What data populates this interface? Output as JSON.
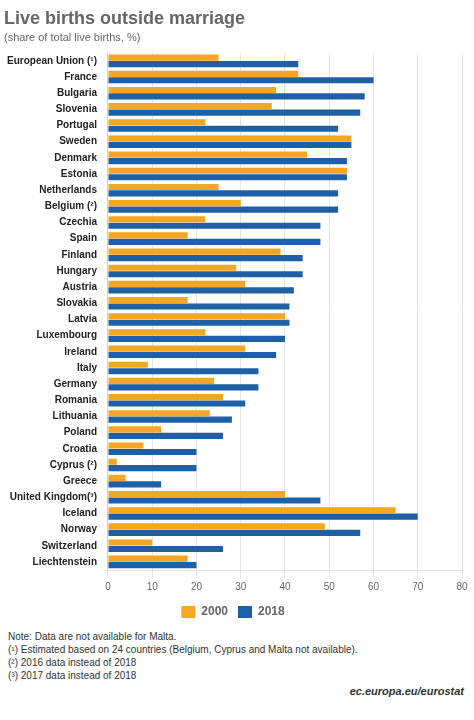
{
  "chart_data": {
    "type": "bar",
    "orientation": "horizontal",
    "title": "Live births outside marriage",
    "subtitle": "(share of total live births, %)",
    "categories": [
      "European Union (¹)",
      "France",
      "Bulgaria",
      "Slovenia",
      "Portugal",
      "Sweden",
      "Denmark",
      "Estonia",
      "Netherlands",
      "Belgium (²)",
      "Czechia",
      "Spain",
      "Finland",
      "Hungary",
      "Austria",
      "Slovakia",
      "Latvia",
      "Luxembourg",
      "Ireland",
      "Italy",
      "Germany",
      "Romania",
      "Lithuania",
      "Poland",
      "Croatia",
      "Cyprus (²)",
      "Greece",
      "United Kingdom(³)",
      "Iceland",
      "Norway",
      "Switzerland",
      "Liechtenstein"
    ],
    "series": [
      {
        "name": "2000",
        "color": "#f5a623",
        "values": [
          25,
          43,
          38,
          37,
          22,
          55,
          45,
          54,
          25,
          30,
          22,
          18,
          39,
          29,
          31,
          18,
          40,
          22,
          31,
          9,
          24,
          26,
          23,
          12,
          8,
          2,
          4,
          40,
          65,
          49,
          10,
          18
        ]
      },
      {
        "name": "2018",
        "color": "#1f5fa6",
        "values": [
          43,
          60,
          58,
          57,
          52,
          55,
          54,
          54,
          52,
          52,
          48,
          48,
          44,
          44,
          42,
          41,
          41,
          40,
          38,
          34,
          34,
          31,
          28,
          26,
          20,
          20,
          12,
          48,
          70,
          57,
          26,
          20
        ]
      }
    ],
    "xlim": [
      0,
      80
    ],
    "xticks": [
      0,
      10,
      20,
      30,
      40,
      50,
      60,
      70,
      80
    ],
    "grid": true,
    "legend": "bottom",
    "notes": [
      "Note: Data are not available for Malta.",
      "(¹) Estimated based on 24 countries (Belgium, Cyprus and Malta not available).",
      "(²) 2016 data instead of 2018",
      "(³) 2017 data instead of 2018"
    ],
    "footer": "ec.europa.eu/eurostat"
  }
}
